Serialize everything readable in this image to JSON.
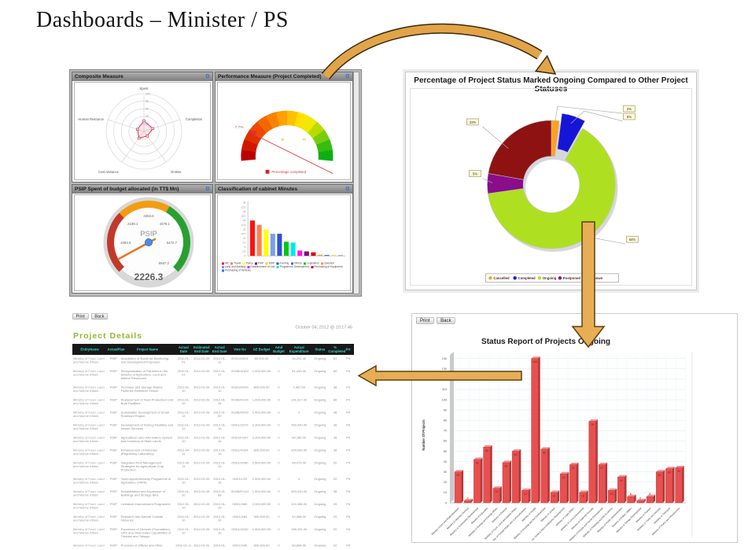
{
  "slide": {
    "title": "Dashboards – Minister / PS"
  },
  "project_table": {
    "print_label": "Print",
    "back_label": "Back",
    "timestamp": "October 04, 2012 @ 10:17:46",
    "title": "Project Details",
    "columns": [
      "EntityName",
      "ActualPlan",
      "Project Name",
      "Actual Date",
      "Estimated End Date",
      "Actual End Date",
      "Vote No",
      "AE Budget",
      "Amd Budget",
      "Actual Expenditure",
      "Status",
      "% Completed",
      "Prt"
    ],
    "rows": [
      [
        "Ministry of Food, Land and Marine Affairs",
        "PSIP",
        "Acquisition of Boats for Monitoring and Development Purposes",
        "2011-01-01",
        "2012-01-09",
        "2012-01-11",
        "003/1/A/001",
        "80,000.00",
        "0",
        "34,201.00",
        "Ongoing",
        "81",
        "Prt"
      ],
      [
        "Ministry of Food, Land and Marine Affairs",
        "PSIP",
        "Reorganisation of Fisheries in the Ministry of Agriculture, Land and Marine Resources",
        "2011-01-01",
        "2012-01-09",
        "2012-01-17",
        "003/B/4/100",
        "1,000,000.00",
        "0",
        "81,440.00",
        "Ongoing",
        "60",
        "Prt"
      ],
      [
        "Ministry of Food, Land and Marine Affairs",
        "PSIP",
        "Purchase and Storage Marine Fisheries Research Vessel",
        "2012-01-10",
        "2012-01-09",
        "2012-01-10",
        "003/1/A/200",
        "800,000.00",
        "0",
        "7,487.00",
        "Ongoing",
        "38",
        "Prt"
      ],
      [
        "Ministry of Food, Land and Marine Affairs",
        "PSIP",
        "Replacement of Fleet Production Unit Boat Facilities",
        "2011-01-10",
        "2012-01-09",
        "2012-01-16",
        "003/B/4/104",
        "1,000,000.00",
        "0",
        "141,317.00",
        "Ongoing",
        "80",
        "Prt"
      ],
      [
        "Ministry of Food, Land and Marine Affairs",
        "PSIP",
        "Sustainable Development of Small Ruminant Region",
        "2011-01-12",
        "2012-01-09",
        "2012-01-09",
        "003/B/4/200",
        "1,400,000.00",
        "0",
        "0",
        "Ongoing",
        "48",
        "Prt"
      ],
      [
        "Ministry of Food, Land and Marine Affairs",
        "PSIP",
        "Development of Fishing Facilities and Vessel Services",
        "2011-01-12",
        "2012-01-09",
        "2012-01-10",
        "003/1/2/279",
        "2,300,000.00",
        "0",
        "760,940.00",
        "Ongoing",
        "38",
        "Prt"
      ],
      [
        "Ministry of Food, Land and Marine Affairs",
        "PSIP",
        "Agricultural Land Information System and Inventory of State Lands",
        "2011-01-10",
        "2012-01-09",
        "2012-01-10",
        "003/1/F/247",
        "2,300,000.00",
        "0",
        "84,180.00",
        "Ongoing",
        "38",
        "Prt"
      ],
      [
        "Ministry of Food, Land and Marine Affairs",
        "PSIP",
        "Enhancement of Fisheries (Regulatory Laboratory)",
        "2012-04-11",
        "2012-01-09",
        "2012-01-10",
        "003/1/4/204",
        "800,000.00",
        "0",
        "100,000.00",
        "Ongoing",
        "38",
        "Prt"
      ],
      [
        "Ministry of Food, Land and Marine Affairs",
        "PSIP",
        "Integrated Pest Management Strategies for Agricultural Crop Production",
        "2012-04-11",
        "2012-01-09",
        "2012-01-10",
        "003/1/4/280",
        "2,500,000.00",
        "0",
        "48,079.00",
        "Ongoing",
        "20",
        "Prt"
      ],
      [
        "Ministry of Food, Land and Marine Affairs",
        "PSIP",
        "Youth Apprenticeship Programme in Agriculture (YAPA)",
        "2011-01-10",
        "2012-01-09",
        "2012-01-16",
        "004/1/L/20",
        "2,500,000.00",
        "0",
        "0",
        "Ongoing",
        "20",
        "Prt"
      ],
      [
        "Ministry of Food, Land and Marine Affairs",
        "PSIP",
        "Rehabilitation and Expansion of Buildings and Storage Bins",
        "2011-01-10",
        "2012-01-09",
        "2012-01-08",
        "003/B/F/144",
        "1,500,000.00",
        "0",
        "303,310.00",
        "Ongoing",
        "38",
        "Prt"
      ],
      [
        "Ministry of Food, Land and Marine Affairs",
        "PSIP",
        "Livestock Improvement Programme",
        "2012-01-10",
        "2012-01-09",
        "2012-01-10",
        "003/1/4/80",
        "2,300,000.00",
        "0",
        "104,186.00",
        "Ongoing",
        "20",
        "Prt"
      ],
      [
        "Ministry of Food, Land and Marine Affairs",
        "PSIP",
        "Research into Natural Coastal Fisheries",
        "2011-01-10",
        "2012-01-09",
        "2012-01-10",
        "003/1/4/84",
        "300,000.00",
        "0",
        "44,088.00",
        "Ongoing",
        "20",
        "Prt"
      ],
      [
        "Ministry of Food, Land and Marine Affairs",
        "PSIP",
        "Expansion of Devices (Foundation), GPS and Tidal Gates Capabilities of Trinidad and Tobago",
        "2011-01-10",
        "2012-01-09",
        "2012-01-10",
        "003/1/4/240",
        "1,400,000.00",
        "0",
        "185,291.00",
        "Ongoing",
        "20",
        "Prt"
      ],
      [
        "Ministry of Food, Land and Marine Affairs",
        "PSIP",
        "Provision of Offices and Other Facilities for North Region",
        "2011-01-11",
        "2012-01-01",
        "2012-01-08",
        "002/1/2/45",
        "800,000.00",
        "0",
        "80,894.00",
        "Ongoing",
        "20",
        "Prt"
      ]
    ]
  },
  "status_report": {
    "print_label": "Print",
    "back_label": "Back"
  },
  "chart_data": [
    {
      "type": "radar",
      "title": "Composite Measure",
      "axes": [
        "Spent",
        "Completion",
        "Ontime",
        "Cost Variance",
        "Human Resource"
      ],
      "values": [
        28,
        25,
        15,
        22,
        18
      ],
      "rings": [
        20,
        40,
        60,
        80,
        100
      ],
      "max": 100
    },
    {
      "type": "gauge",
      "title": "Performance Measure (Project Completed)",
      "value_label": "7.7%",
      "scale_labels": [
        "30",
        "60",
        "100"
      ],
      "legend": "Percentage completed",
      "segment_colors": [
        "#B80000",
        "#D01800",
        "#E03000",
        "#EE4A00",
        "#F66600",
        "#FB8200",
        "#FFA000",
        "#FFC000",
        "#FFE000",
        "#F0E800",
        "#B8DC00",
        "#78CC10",
        "#38BC10",
        "#0CAE10"
      ]
    },
    {
      "type": "gauge",
      "title": "PSIP Spent of budget allocated (in TT$ Mn)",
      "center_label": "PSIP",
      "value": "2226.3",
      "ticks": [
        "1094.5",
        "2189.1",
        "3283.6",
        "4378.1",
        "5472.7",
        "6567.2"
      ],
      "min": 0,
      "max": 6567.2,
      "bands": [
        {
          "color": "#C0392B",
          "from_deg": -135,
          "to_deg": -45
        },
        {
          "color": "#F39C12",
          "from_deg": -45,
          "to_deg": 30
        },
        {
          "color": "#27A030",
          "from_deg": 30,
          "to_deg": 135
        }
      ]
    },
    {
      "type": "bar",
      "title": "Classification of cabinet Minutes",
      "ylim": [
        0,
        30
      ],
      "ytick_step": 2.5,
      "categories": [
        "HR",
        "Travel",
        "Policy",
        "Land and Building",
        "Funding",
        "Legislation",
        "Programme Development",
        "Establishment of Unit",
        "PSIP",
        "Purchasing of Equipment",
        "Question",
        "Others",
        "SSIP",
        "Purchasing of Vehicles"
      ],
      "values": [
        20,
        17.5,
        15,
        12.5,
        12.5,
        8,
        7.5,
        3,
        2.5,
        2,
        0.6,
        0.5,
        0.4,
        0.3
      ],
      "colors": [
        "#FF1010",
        "#FF7F50",
        "#FFFF00",
        "#7B9FE8",
        "#2A52D8",
        "#00C816",
        "#00E8E8",
        "#FF10FF",
        "#800080",
        "#E00000",
        "#FF9030",
        "#3A6AE0",
        "#FFD700",
        "#4169E1"
      ],
      "legend": [
        {
          "label": "HR",
          "color": "#FF1010"
        },
        {
          "label": "Travel",
          "color": "#FF7F50"
        },
        {
          "label": "Policy",
          "color": "#FFFF00"
        },
        {
          "label": "PSIP",
          "color": "#800080"
        },
        {
          "label": "SSIP",
          "color": "#FFD700"
        },
        {
          "label": "Funding",
          "color": "#2A52D8"
        },
        {
          "label": "Others",
          "color": "#3A6AE0"
        },
        {
          "label": "Legislation",
          "color": "#00C816"
        },
        {
          "label": "Question",
          "color": "#FF9030"
        },
        {
          "label": "Land and Building",
          "color": "#7B9FE8"
        },
        {
          "label": "Establishment of Unit",
          "color": "#FF10FF"
        },
        {
          "label": "Programme Development",
          "color": "#00E8E8"
        },
        {
          "label": "Purchasing of Equipment",
          "color": "#E00000"
        },
        {
          "label": "Purchasing of Vehicles",
          "color": "#4169E1"
        }
      ]
    },
    {
      "type": "pie",
      "title": "Percentage of Project Status Marked Ongoing Compared to Other Project Statuses",
      "donut": true,
      "legend_position": "bottom",
      "slices": [
        {
          "label": "Cancelled",
          "pct": 2,
          "color": "#FFA020",
          "callout": "2%"
        },
        {
          "label": "Completed",
          "pct": 6,
          "color": "#1515D8",
          "callout": "6%",
          "exploded": true
        },
        {
          "label": "Ongoing",
          "pct": 64,
          "color": "#AEE021",
          "callout": "64%"
        },
        {
          "label": "Postponed",
          "pct": 5,
          "color": "#8A0D8A",
          "callout": "5%"
        },
        {
          "label": "Unknown",
          "pct": 22,
          "color": "#8E1212",
          "callout": "22%"
        }
      ]
    },
    {
      "type": "bar",
      "title": "Status Report of Projects Ongoing",
      "ylabel": "Number Of Projects",
      "ylim": [
        0,
        140
      ],
      "ytick_step": 10,
      "bar_color": "#E85050",
      "categories": [
        "Ministry of Arts and Multiculturalism",
        "Ministry of Attorney General",
        "Ministry of Community Development",
        "Ministry of Education",
        "Ministry of Energy and Energy Affairs",
        "Ministry of Finance",
        "Ministry of Food, Land and Marine Affairs",
        "Ministry of Foreign Affairs and Communications",
        "Ministry of Health",
        "Ministry of Housing and the Environment",
        "Ministry of Justice",
        "Ministry of Labour, Small & Micro Enterprise Development",
        "Ministry of Legal Affairs",
        "Ministry of Local Government",
        "Ministry of National Security",
        "Ministry of People and Social Development",
        "Ministry of Planning and the Economy",
        "Ministry of Public Administration",
        "Ministry of Public Utilities",
        "Ministry of Tobago Development",
        "Ministry of Tourism",
        "Ministry of Trade and Industry",
        "Ministry of Transport",
        "Ministry of Works and Infrastructure"
      ],
      "values": [
        30,
        2,
        42,
        54,
        14,
        39,
        50,
        12,
        140,
        52,
        10,
        28,
        37,
        10,
        79,
        37,
        12,
        25,
        6,
        2,
        6,
        30,
        33,
        34
      ]
    }
  ]
}
